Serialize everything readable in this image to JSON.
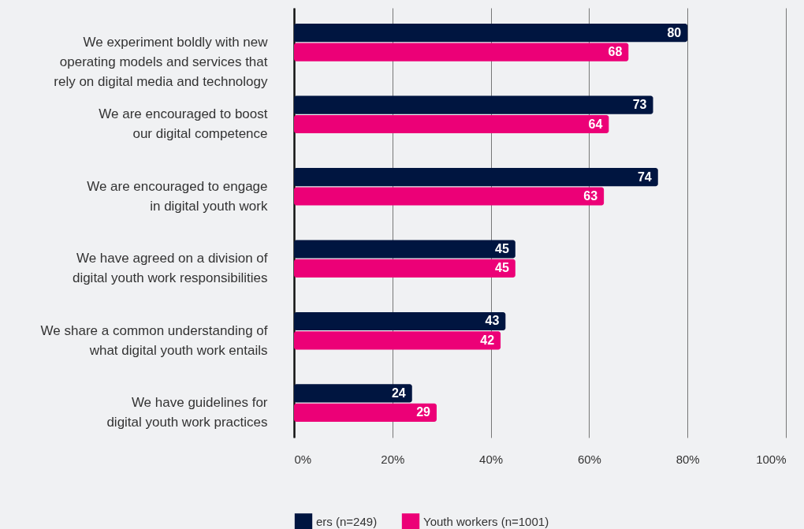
{
  "chart_data": {
    "type": "bar",
    "orientation": "horizontal",
    "categories": [
      "We experiment boldly with new operating models and services that rely on digital media and technology",
      "We are encouraged to boost our digital competence",
      "We are encouraged to engage in digital youth work",
      "We have agreed on a division of digital youth work responsibilities",
      "We share a common understanding of what digital youth work entails",
      "We have guidelines for digital youth work practices"
    ],
    "series": [
      {
        "name": "ers (n=249)",
        "color": "#001540",
        "values": [
          80,
          73,
          74,
          45,
          43,
          24
        ]
      },
      {
        "name": "Youth workers (n=1001)",
        "color": "#ec0077",
        "values": [
          68,
          64,
          63,
          45,
          42,
          29
        ]
      }
    ],
    "xlim": [
      0,
      100
    ],
    "xticks": [
      {
        "value": 0,
        "label": "0%"
      },
      {
        "value": 20,
        "label": "20%"
      },
      {
        "value": 40,
        "label": "40%"
      },
      {
        "value": 60,
        "label": "60%"
      },
      {
        "value": 80,
        "label": "80%"
      },
      {
        "value": 100,
        "label": "100%"
      }
    ],
    "grid": "x",
    "legend": "bottom",
    "data_labels": true
  }
}
